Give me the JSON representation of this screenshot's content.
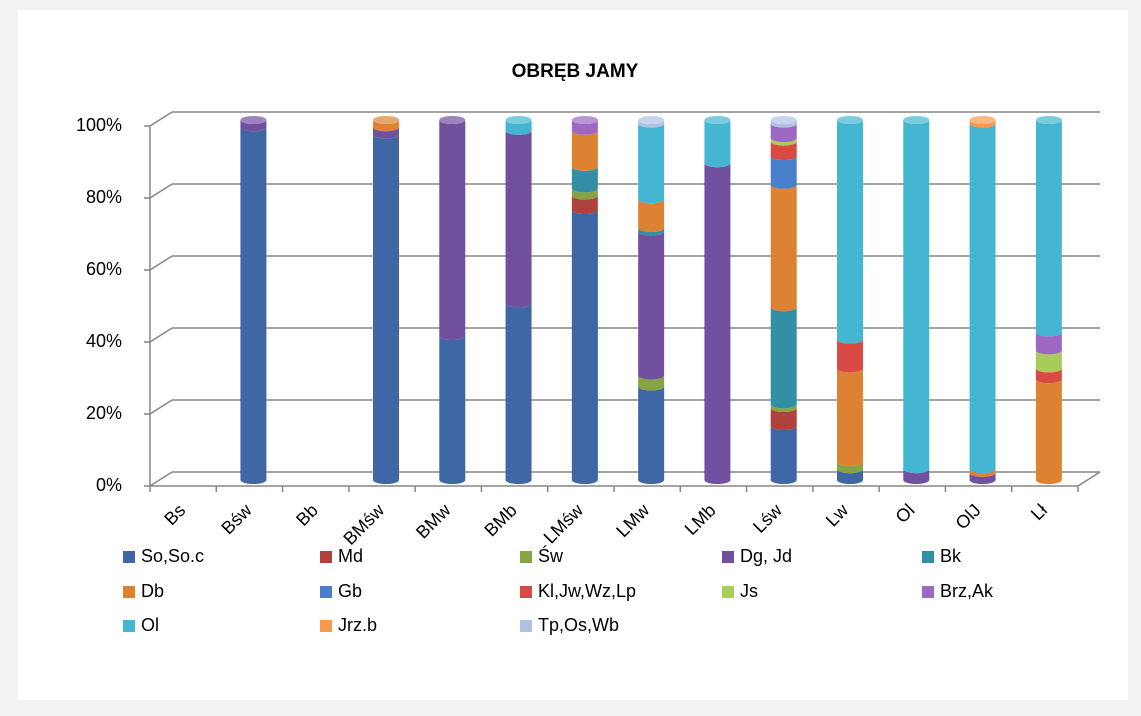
{
  "chart_data": {
    "type": "bar",
    "stacked": true,
    "title": "OBRĘB JAMY",
    "categories": [
      "Bs",
      "Bśw",
      "Bb",
      "BMśw",
      "BMw",
      "BMb",
      "LMśw",
      "LMw",
      "LMb",
      "Lśw",
      "Lw",
      "Ol",
      "OlJ",
      "Lł"
    ],
    "ylim": [
      0,
      100
    ],
    "yticks": [
      {
        "value": 0,
        "label": "0%"
      },
      {
        "value": 20,
        "label": "20%"
      },
      {
        "value": 40,
        "label": "40%"
      },
      {
        "value": 60,
        "label": "60%"
      },
      {
        "value": 80,
        "label": "80%"
      },
      {
        "value": 100,
        "label": "100%"
      }
    ],
    "grid": true,
    "legend": "bottom",
    "series": [
      {
        "name": "So,So.c",
        "color": "#3f67a6",
        "values": [
          0,
          98,
          0,
          96,
          40,
          49,
          75,
          26,
          0,
          15,
          3,
          0,
          0,
          0
        ]
      },
      {
        "name": "Md",
        "color": "#b0423e",
        "values": [
          0,
          0,
          0,
          0,
          0,
          0,
          4,
          0,
          0,
          5,
          0,
          0,
          0,
          0
        ]
      },
      {
        "name": "Św",
        "color": "#86a444",
        "values": [
          0,
          0,
          0,
          0,
          0,
          0,
          2,
          3,
          0,
          1,
          2,
          0,
          0,
          0
        ]
      },
      {
        "name": "Dg, Jd",
        "color": "#7250a0",
        "values": [
          0,
          2,
          0,
          2,
          60,
          48,
          0,
          40,
          88,
          0,
          0,
          3,
          2,
          0
        ]
      },
      {
        "name": "Bk",
        "color": "#338fa6",
        "values": [
          0,
          0,
          0,
          0,
          0,
          0,
          6,
          1,
          0,
          27,
          0,
          0,
          0,
          0
        ]
      },
      {
        "name": "Db",
        "color": "#dd8232",
        "values": [
          0,
          0,
          0,
          2,
          0,
          0,
          10,
          8,
          0,
          34,
          26,
          0,
          1,
          28
        ]
      },
      {
        "name": "Gb",
        "color": "#4a7fcc",
        "values": [
          0,
          0,
          0,
          0,
          0,
          0,
          0,
          0,
          0,
          8,
          0,
          0,
          0,
          0
        ]
      },
      {
        "name": "Kl,Jw,Wz,Lp",
        "color": "#d94a45",
        "values": [
          0,
          0,
          0,
          0,
          0,
          0,
          0,
          0,
          0,
          4,
          8,
          0,
          0,
          3
        ]
      },
      {
        "name": "Js",
        "color": "#a8cc5a",
        "values": [
          0,
          0,
          0,
          0,
          0,
          0,
          0,
          0,
          0,
          1,
          0,
          0,
          0,
          5
        ]
      },
      {
        "name": "Brz,Ak",
        "color": "#9c68c4",
        "values": [
          0,
          0,
          0,
          0,
          0,
          0,
          3,
          0,
          0,
          4,
          0,
          0,
          0,
          5
        ]
      },
      {
        "name": "Ol",
        "color": "#44b6d2",
        "values": [
          0,
          0,
          0,
          0,
          0,
          3,
          0,
          21,
          12,
          0,
          61,
          97,
          96,
          59
        ]
      },
      {
        "name": "Jrz.b",
        "color": "#f7994a",
        "values": [
          0,
          0,
          0,
          0,
          0,
          0,
          0,
          0,
          0,
          0,
          0,
          0,
          1,
          0
        ]
      },
      {
        "name": "Tp,Os,Wb",
        "color": "#b1c1e2",
        "values": [
          0,
          0,
          0,
          0,
          0,
          0,
          0,
          1,
          0,
          1,
          0,
          0,
          0,
          0
        ]
      }
    ]
  }
}
